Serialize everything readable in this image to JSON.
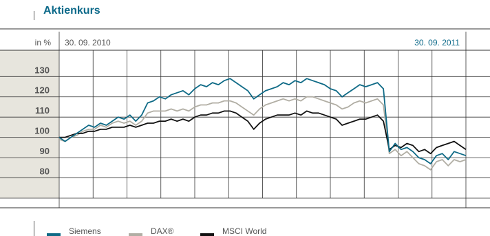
{
  "title": "Aktienkurs",
  "colors": {
    "siemens": "#0e6a86",
    "dax": "#b1aea4",
    "msci": "#111111",
    "shade": "#e7e5dd",
    "grid": "#333333",
    "accent_text": "#0d6a8a"
  },
  "chart_data": {
    "type": "line",
    "unit_label": "in %",
    "x_start_label": "30. 09. 2010",
    "x_end_label": "30. 09. 2011",
    "ylim": [
      70,
      143
    ],
    "y_ticks": [
      "80",
      "90",
      "100",
      "110",
      "120",
      "130"
    ],
    "grid": true,
    "legend_position": "bottom-left",
    "series": [
      {
        "name": "Siemens",
        "color": "#0e6a86",
        "values": [
          100,
          98,
          100,
          102,
          104,
          106,
          105,
          107,
          106,
          108,
          110,
          109,
          111,
          108,
          111,
          117,
          118,
          120,
          119,
          121,
          122,
          123,
          121,
          124,
          126,
          125,
          127,
          126,
          128,
          129,
          127,
          125,
          123,
          119,
          121,
          123,
          124,
          125,
          127,
          126,
          128,
          127,
          129,
          128,
          127,
          126,
          124,
          123,
          120,
          122,
          124,
          126,
          125,
          126,
          127,
          124,
          93,
          97,
          94,
          95,
          93,
          90,
          89,
          87,
          91,
          92,
          89,
          93,
          92,
          91
        ]
      },
      {
        "name": "DAX®",
        "color": "#b1aea4",
        "values": [
          99,
          98,
          100,
          101,
          103,
          104,
          104,
          106,
          105,
          107,
          108,
          107,
          108,
          106,
          108,
          112,
          113,
          113,
          113,
          114,
          113,
          114,
          113,
          115,
          116,
          116,
          117,
          117,
          118,
          118,
          117,
          115,
          113,
          111,
          114,
          116,
          117,
          118,
          119,
          118,
          119,
          118,
          120,
          120,
          119,
          118,
          117,
          116,
          114,
          115,
          117,
          118,
          117,
          118,
          119,
          116,
          92,
          94,
          91,
          93,
          90,
          87,
          86,
          84,
          88,
          89,
          86,
          89,
          88,
          89
        ]
      },
      {
        "name": "MSCI World",
        "color": "#111111",
        "values": [
          100,
          100,
          101,
          102,
          102,
          103,
          103,
          104,
          104,
          105,
          105,
          105,
          106,
          105,
          106,
          107,
          107,
          108,
          108,
          109,
          108,
          109,
          108,
          110,
          111,
          111,
          112,
          112,
          113,
          113,
          112,
          110,
          108,
          104,
          107,
          109,
          110,
          111,
          111,
          111,
          112,
          111,
          113,
          112,
          112,
          111,
          110,
          109,
          106,
          107,
          108,
          109,
          109,
          110,
          111,
          108,
          94,
          96,
          95,
          97,
          96,
          93,
          94,
          92,
          95,
          96,
          97,
          98,
          96,
          94
        ]
      }
    ]
  }
}
